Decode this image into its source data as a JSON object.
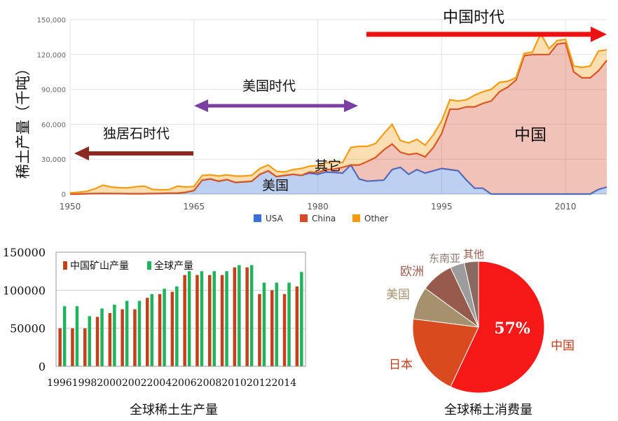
{
  "chart_data": [
    {
      "type": "area",
      "ylabel": "稀土产量（千吨）",
      "xlim": [
        1950,
        2015
      ],
      "ylim": [
        0,
        150000
      ],
      "y_ticks": [
        "0",
        "30,000",
        "60,000",
        "90,000",
        "120,000",
        "150,000"
      ],
      "x_ticks": [
        "1950",
        "1965",
        "1980",
        "1995",
        "2010"
      ],
      "stacked": true,
      "x": [
        1950,
        1951,
        1952,
        1953,
        1954,
        1955,
        1956,
        1957,
        1958,
        1959,
        1960,
        1961,
        1962,
        1963,
        1964,
        1965,
        1966,
        1967,
        1968,
        1969,
        1970,
        1971,
        1972,
        1973,
        1974,
        1975,
        1976,
        1977,
        1978,
        1979,
        1980,
        1981,
        1982,
        1983,
        1984,
        1985,
        1986,
        1987,
        1988,
        1989,
        1990,
        1991,
        1992,
        1993,
        1994,
        1995,
        1996,
        1997,
        1998,
        1999,
        2000,
        2001,
        2002,
        2003,
        2004,
        2005,
        2006,
        2007,
        2008,
        2009,
        2010,
        2011,
        2012,
        2013,
        2014,
        2015
      ],
      "series": [
        {
          "name": "USA",
          "color": "#3a6fd8",
          "values": [
            0,
            0,
            300,
            500,
            600,
            500,
            400,
            300,
            300,
            300,
            500,
            600,
            800,
            800,
            1500,
            3000,
            12000,
            13000,
            11000,
            12500,
            10000,
            10500,
            11000,
            17000,
            20000,
            15000,
            16000,
            17000,
            16000,
            18000,
            17000,
            19000,
            18500,
            18000,
            25000,
            13000,
            11000,
            11500,
            12000,
            21000,
            23000,
            17000,
            21000,
            18000,
            20000,
            22000,
            21000,
            20000,
            12000,
            5000,
            5000,
            0,
            0,
            0,
            0,
            0,
            0,
            0,
            0,
            0,
            0,
            0,
            0,
            0,
            4000,
            6000
          ]
        },
        {
          "name": "China",
          "color": "#d64a27",
          "values": [
            0,
            0,
            0,
            0,
            0,
            0,
            0,
            0,
            0,
            0,
            0,
            0,
            0,
            0,
            0,
            0,
            0,
            0,
            0,
            0,
            0,
            0,
            0,
            0,
            0,
            0,
            0,
            0,
            0,
            1000,
            1500,
            2000,
            3000,
            5000,
            0,
            12000,
            17000,
            20000,
            26000,
            22000,
            13000,
            17000,
            14000,
            14000,
            20000,
            30000,
            52000,
            53000,
            63000,
            70000,
            73000,
            80000,
            88000,
            92000,
            98000,
            119000,
            120000,
            120000,
            120000,
            129000,
            130000,
            105000,
            100000,
            100000,
            102000,
            109000
          ]
        },
        {
          "name": "Other",
          "color": "#f39c12",
          "values": [
            1000,
            1500,
            2000,
            4000,
            7000,
            5500,
            5000,
            5000,
            6000,
            6500,
            3500,
            3000,
            3000,
            6000,
            4500,
            3500,
            4000,
            3500,
            4500,
            4000,
            5500,
            5000,
            5000,
            5000,
            5000,
            4500,
            3000,
            4000,
            6000,
            5000,
            6000,
            6000,
            6500,
            4000,
            15000,
            16000,
            13000,
            12000,
            14000,
            17000,
            10000,
            10000,
            12000,
            10000,
            11000,
            11000,
            8000,
            7000,
            6000,
            10000,
            10000,
            10000,
            8000,
            5000,
            2000,
            2000,
            2000,
            18000,
            5000,
            3000,
            3000,
            5000,
            9000,
            10000,
            17000,
            9000
          ]
        }
      ],
      "legend": [
        "USA",
        "China",
        "Other"
      ],
      "legend_position": "bottom",
      "annotations": {
        "monazite_era": "独居石时代",
        "usa_era": "美国时代",
        "china_era": "中国时代",
        "other": "其它",
        "usa": "美国",
        "china": "中国"
      },
      "colors": {
        "monazite_arrow": "#8b2a21",
        "usa_arrow": "#7b3fa3",
        "china_arrow": "#ee1111"
      }
    },
    {
      "type": "bar",
      "title": "全球稀土生产量",
      "categories": [
        "1996",
        "1997",
        "1998",
        "1999",
        "2000",
        "2001",
        "2002",
        "2003",
        "2004",
        "2005",
        "2006",
        "2007",
        "2008",
        "2009",
        "2010",
        "2011",
        "2012",
        "2013",
        "2014",
        "2015"
      ],
      "x_tick_labels": [
        "1996",
        "1998",
        "2000",
        "2002",
        "2004",
        "2006",
        "2008",
        "2010",
        "2012",
        "2014"
      ],
      "ylim": [
        0,
        150000
      ],
      "y_ticks": [
        "0",
        "50000",
        "100000",
        "150000"
      ],
      "series": [
        {
          "name": "中国矿山产量",
          "color": "#c2411c",
          "values": [
            50000,
            50000,
            50000,
            65000,
            70000,
            75000,
            75000,
            90000,
            95000,
            98000,
            120000,
            120000,
            120000,
            120000,
            130000,
            130000,
            95000,
            100000,
            95000,
            105000
          ]
        },
        {
          "name": "全球产量",
          "color": "#1fb35c",
          "values": [
            79000,
            79000,
            66000,
            76000,
            81000,
            86000,
            86000,
            95000,
            102000,
            105000,
            125000,
            125000,
            125000,
            125000,
            133000,
            133000,
            110000,
            110000,
            110000,
            124000
          ]
        }
      ],
      "legend_position": "top-left"
    },
    {
      "type": "pie",
      "title": "全球稀土消费量",
      "slices": [
        {
          "label": "中国",
          "value": 57,
          "color": "#f71818",
          "label_color": "#c63a16"
        },
        {
          "label": "日本",
          "value": 20,
          "color": "#d94a1e",
          "label_color": "#c63a16"
        },
        {
          "label": "美国",
          "value": 8,
          "color": "#a6916e",
          "label_color": "#a6916e"
        },
        {
          "label": "欧洲",
          "value": 8,
          "color": "#965b4c",
          "label_color": "#965b4c"
        },
        {
          "label": "东南亚",
          "value": 3.5,
          "color": "#9c9c9c",
          "label_color": "#8d7a72"
        },
        {
          "label": "其他",
          "value": 3.5,
          "color": "#8a6a60",
          "label_color": "#965b4c"
        }
      ],
      "center_label": "57%"
    }
  ]
}
